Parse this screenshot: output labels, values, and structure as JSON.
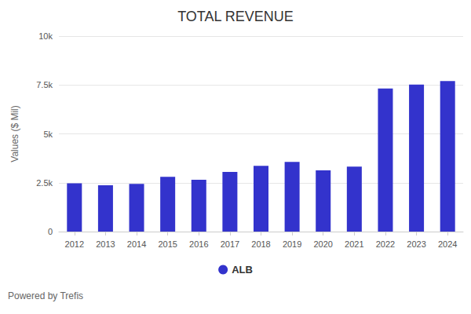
{
  "chart_data": {
    "type": "bar",
    "title": "TOTAL REVENUE",
    "y_label": "Values ($ Mil)",
    "annotation": "Powered by Trefis",
    "categories": [
      "2012",
      "2013",
      "2014",
      "2015",
      "2016",
      "2017",
      "2018",
      "2019",
      "2020",
      "2021",
      "2022",
      "2023",
      "2024"
    ],
    "series": [
      {
        "name": "ALB",
        "color": "#3333cc",
        "values": [
          2470,
          2370,
          2440,
          2800,
          2650,
          3050,
          3360,
          3560,
          3130,
          3320,
          7320,
          7520,
          7700
        ]
      }
    ],
    "ylim": [
      0,
      10000
    ],
    "yticks": [
      0,
      {
        "value": 2500,
        "label": "2.5k"
      },
      {
        "value": 5000,
        "label": "5k"
      },
      {
        "value": 7500,
        "label": "7.5k"
      },
      {
        "value": 10000,
        "label": "10k"
      }
    ],
    "grid": true,
    "legend": "bottom"
  }
}
